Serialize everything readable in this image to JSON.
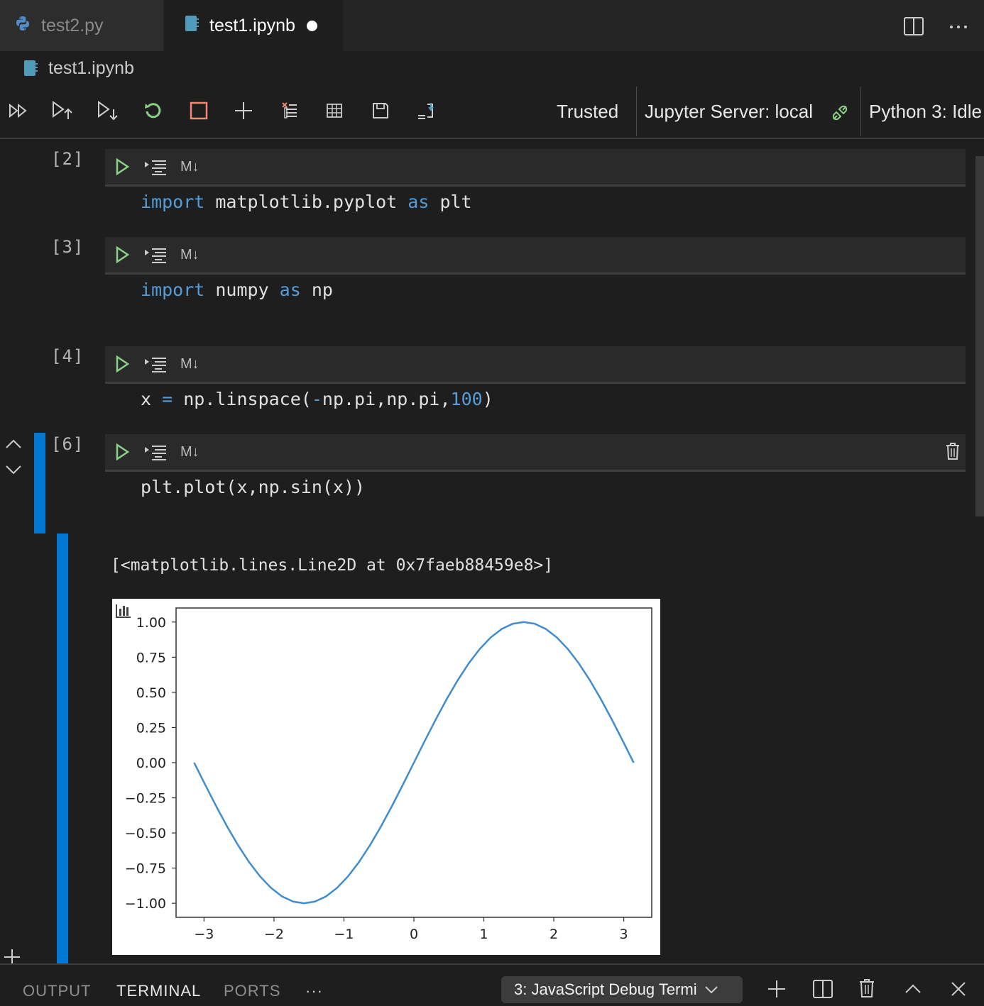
{
  "tabs": [
    {
      "label": "test2.py",
      "icon": "python-icon",
      "active": false
    },
    {
      "label": "test1.ipynb",
      "icon": "notebook-icon",
      "active": true,
      "dirty": true
    }
  ],
  "breadcrumb": {
    "file": "test1.ipynb"
  },
  "toolbar": {
    "trusted": "Trusted",
    "server": "Jupyter Server: local",
    "kernel": "Python 3: Idle"
  },
  "cells": [
    {
      "count": "[2]",
      "md_label": "M↓",
      "code": "import matplotlib.pyplot as plt"
    },
    {
      "count": "[3]",
      "md_label": "M↓",
      "code": "import numpy as np"
    },
    {
      "count": "[4]",
      "md_label": "M↓",
      "code": "x = np.linspace(-np.pi,np.pi,100)"
    },
    {
      "count": "[6]",
      "md_label": "M↓",
      "code": "plt.plot(x,np.sin(x))",
      "selected": true
    }
  ],
  "output": {
    "text": "[<matplotlib.lines.Line2D at 0x7faeb88459e8>]"
  },
  "chart_data": {
    "type": "line",
    "title": "",
    "xlabel": "",
    "ylabel": "",
    "xlim": [
      -3.4,
      3.4
    ],
    "ylim": [
      -1.1,
      1.1
    ],
    "x_ticks": [
      -3,
      -2,
      -1,
      0,
      1,
      2,
      3
    ],
    "x_tick_labels": [
      "−3",
      "−2",
      "−1",
      "0",
      "1",
      "2",
      "3"
    ],
    "y_ticks": [
      1.0,
      0.75,
      0.5,
      0.25,
      0.0,
      -0.25,
      -0.5,
      -0.75,
      -1.0
    ],
    "y_tick_labels": [
      "1.00",
      "0.75",
      "0.50",
      "0.25",
      "0.00",
      "−0.25",
      "−0.50",
      "−0.75",
      "−1.00"
    ],
    "grid": false,
    "series": [
      {
        "color": "#3f8ccf",
        "x": [
          -3.1416,
          -2.9845,
          -2.8274,
          -2.6704,
          -2.5133,
          -2.3562,
          -2.1991,
          -2.042,
          -1.885,
          -1.7279,
          -1.5708,
          -1.4137,
          -1.2566,
          -1.0996,
          -0.9425,
          -0.7854,
          -0.6283,
          -0.4712,
          -0.3142,
          -0.1571,
          0.0,
          0.1571,
          0.3142,
          0.4712,
          0.6283,
          0.7854,
          0.9425,
          1.0996,
          1.2566,
          1.4137,
          1.5708,
          1.7279,
          1.885,
          2.042,
          2.1991,
          2.3562,
          2.5133,
          2.6704,
          2.8274,
          2.9845,
          3.1416
        ],
        "y": [
          0.0,
          -0.1564,
          -0.309,
          -0.454,
          -0.5878,
          -0.7071,
          -0.809,
          -0.891,
          -0.9511,
          -0.9877,
          -1.0,
          -0.9877,
          -0.9511,
          -0.891,
          -0.809,
          -0.7071,
          -0.5878,
          -0.454,
          -0.309,
          -0.1564,
          0.0,
          0.1564,
          0.309,
          0.454,
          0.5878,
          0.7071,
          0.809,
          0.891,
          0.9511,
          0.9877,
          1.0,
          0.9877,
          0.9511,
          0.891,
          0.809,
          0.7071,
          0.5878,
          0.454,
          0.309,
          0.1564,
          0.0
        ]
      }
    ]
  },
  "panel": {
    "tabs": [
      "OUTPUT",
      "TERMINAL",
      "PORTS"
    ],
    "active_tab": "TERMINAL",
    "more": "···",
    "terminal_select": "3: JavaScript Debug Termi"
  },
  "colors": {
    "accent_blue": "#0078d4",
    "run_green": "#89d185",
    "stop_red": "#f48771",
    "keyword": "#569cd6"
  }
}
